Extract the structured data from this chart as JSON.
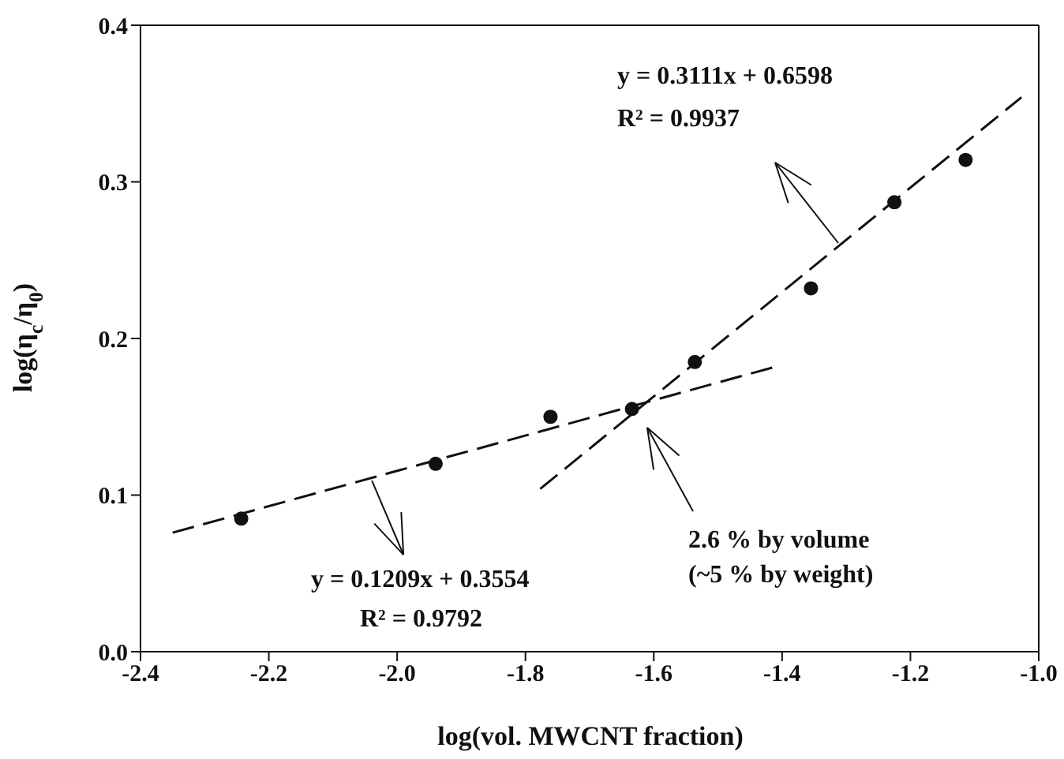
{
  "chart_data": {
    "type": "scatter",
    "xlabel": "log(vol. MWCNT fraction)",
    "ylabel": "log(η$_{c}$/η$_{0}$)",
    "xlim": [
      -2.4,
      -1.0
    ],
    "xticks": [
      -2.4,
      -2.2,
      {
        "value": -2,
        "label": "-2.0"
      },
      -1.8,
      -1.6,
      -1.4,
      -1.2,
      {
        "value": -1,
        "label": "-1.0"
      }
    ],
    "ylim": [
      0,
      0.4
    ],
    "yticks": [
      {
        "value": 0,
        "label": "0.0"
      },
      0.1,
      0.2,
      0.3,
      0.4
    ],
    "marker": "circle",
    "series": [
      {
        "color": "#111111",
        "x": [
          -2.243,
          -1.94,
          -1.761,
          -1.634,
          -1.536,
          -1.355,
          -1.225,
          -1.114
        ],
        "values": [
          0.085,
          0.12,
          0.15,
          0.155,
          0.185,
          0.232,
          0.287,
          0.314
        ]
      },
      {
        "type": "line",
        "color": "#111111",
        "line_style": "dashed",
        "marker": "none",
        "x": [
          -2.35,
          -1.41
        ],
        "values": [
          0.076,
          0.182
        ]
      },
      {
        "type": "line",
        "color": "#111111",
        "line_style": "dashed",
        "marker": "none",
        "x": [
          -1.777,
          -1.027
        ],
        "values": [
          0.104,
          0.354
        ]
      }
    ],
    "annotations": [
      "y = 0.3111x + 0.6598",
      "R² = 0.9937",
      {
        "text": "y = 0.1209x + 0.3554",
        "x": -2.04,
        "y": 0.109
      },
      "R² = 0.9792",
      "2.6  % by volume",
      "(~5 % by weight)"
    ]
  }
}
